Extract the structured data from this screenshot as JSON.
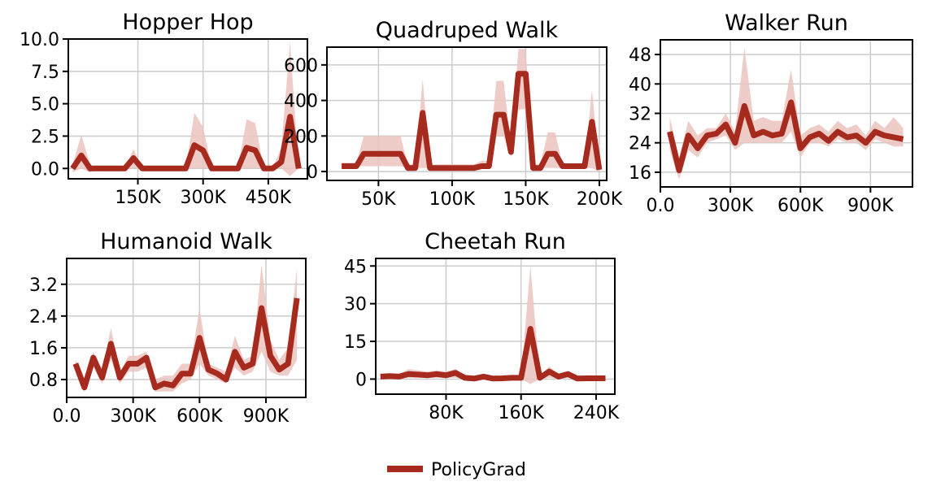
{
  "colors": {
    "line": "#a62a1e",
    "band": "#ebc4bf",
    "grid": "#cccccc",
    "axis": "#000000"
  },
  "legend": {
    "label": "PolicyGrad"
  },
  "chart_data": [
    {
      "type": "line",
      "title": "Hopper Hop",
      "xlim": [
        -10000,
        540000
      ],
      "ylim": [
        -0.8,
        10.0
      ],
      "xticks": [
        150000,
        300000,
        450000
      ],
      "xtick_labels": [
        "150K",
        "300K",
        "450K"
      ],
      "yticks": [
        0.0,
        2.5,
        5.0,
        7.5,
        10.0
      ],
      "ytick_labels": [
        "0.0",
        "2.5",
        "5.0",
        "7.5",
        "10.0"
      ],
      "series": [
        {
          "x": [
            0,
            20000,
            40000,
            60000,
            80000,
            100000,
            120000,
            140000,
            160000,
            180000,
            200000,
            220000,
            240000,
            260000,
            280000,
            300000,
            320000,
            340000,
            360000,
            380000,
            400000,
            420000,
            440000,
            460000,
            480000,
            500000,
            520000
          ],
          "y": [
            0,
            1.0,
            0,
            0,
            0,
            0,
            0,
            0.8,
            0,
            0,
            0,
            0,
            0,
            0,
            1.8,
            1.4,
            0,
            0,
            0,
            0,
            1.6,
            1.4,
            0,
            0,
            0.5,
            4.0,
            0
          ],
          "y_low": [
            -0.3,
            0,
            -0.3,
            0,
            0,
            0,
            0,
            0,
            0,
            0,
            0,
            0,
            0,
            0,
            0,
            0,
            0,
            0,
            0,
            0,
            0,
            0,
            0,
            0,
            0,
            -0.6,
            0
          ],
          "y_high": [
            0.3,
            2.6,
            0.3,
            0,
            0,
            0,
            0,
            1.5,
            0,
            0,
            0,
            0,
            0,
            0,
            4.3,
            3.2,
            0,
            0,
            0,
            0,
            3.8,
            3.5,
            0,
            0,
            1.6,
            9.8,
            0
          ]
        }
      ]
    },
    {
      "type": "line",
      "title": "Quadruped Walk",
      "xlim": [
        15000,
        205000
      ],
      "ylim": [
        -50,
        700
      ],
      "xticks": [
        50000,
        100000,
        150000,
        200000
      ],
      "xtick_labels": [
        "50K",
        "100K",
        "150K",
        "200K"
      ],
      "yticks": [
        0,
        200,
        400,
        600
      ],
      "ytick_labels": [
        "0",
        "200",
        "400",
        "600"
      ],
      "series": [
        {
          "x": [
            25000,
            30000,
            35000,
            40000,
            45000,
            50000,
            55000,
            60000,
            65000,
            70000,
            75000,
            80000,
            85000,
            90000,
            95000,
            100000,
            105000,
            110000,
            115000,
            120000,
            125000,
            130000,
            135000,
            140000,
            145000,
            150000,
            155000,
            160000,
            165000,
            170000,
            175000,
            180000,
            185000,
            190000,
            195000,
            200000
          ],
          "y": [
            30,
            30,
            30,
            100,
            100,
            100,
            100,
            100,
            100,
            20,
            20,
            330,
            20,
            20,
            20,
            20,
            20,
            20,
            20,
            30,
            30,
            320,
            320,
            110,
            550,
            550,
            20,
            20,
            100,
            100,
            30,
            30,
            30,
            30,
            280,
            10
          ],
          "y_low": [
            30,
            30,
            30,
            30,
            30,
            30,
            30,
            30,
            30,
            20,
            20,
            20,
            20,
            20,
            20,
            20,
            20,
            20,
            20,
            20,
            20,
            200,
            200,
            80,
            350,
            350,
            20,
            20,
            20,
            20,
            20,
            20,
            20,
            20,
            20,
            0
          ],
          "y_high": [
            50,
            50,
            50,
            200,
            200,
            200,
            200,
            200,
            200,
            40,
            40,
            520,
            40,
            40,
            40,
            40,
            40,
            40,
            40,
            60,
            60,
            510,
            510,
            150,
            690,
            690,
            40,
            40,
            220,
            220,
            40,
            40,
            40,
            40,
            460,
            20
          ]
        }
      ]
    },
    {
      "type": "line",
      "title": "Walker Run",
      "xlim": [
        0,
        1080000
      ],
      "ylim": [
        12,
        52
      ],
      "xticks": [
        0,
        300000,
        600000,
        900000
      ],
      "xtick_labels": [
        "0.0",
        "300K",
        "600K",
        "900K"
      ],
      "yticks": [
        16,
        24,
        32,
        40,
        48
      ],
      "ytick_labels": [
        "16",
        "24",
        "32",
        "40",
        "48"
      ],
      "series": [
        {
          "x": [
            40000,
            80000,
            120000,
            160000,
            200000,
            240000,
            280000,
            320000,
            360000,
            400000,
            440000,
            480000,
            520000,
            560000,
            600000,
            640000,
            680000,
            720000,
            760000,
            800000,
            840000,
            880000,
            920000,
            960000,
            1000000,
            1040000
          ],
          "y": [
            27,
            16.5,
            26,
            22.5,
            26,
            26.5,
            29,
            24,
            34,
            26,
            27,
            26,
            26.5,
            35,
            22.5,
            25.5,
            26.5,
            24.5,
            27,
            25.5,
            26,
            24,
            27,
            26,
            25.5,
            25
          ],
          "y_low": [
            22,
            14,
            22,
            20,
            24,
            25,
            26,
            22,
            24,
            24,
            24,
            24,
            24,
            27,
            20,
            24,
            24,
            23,
            25,
            24,
            24,
            22,
            25,
            24,
            23,
            23
          ],
          "y_high": [
            31,
            20,
            30,
            26,
            28,
            28,
            32,
            27,
            50,
            30,
            31,
            30,
            30,
            44,
            26,
            28,
            29,
            27,
            30,
            28,
            29,
            26,
            30,
            28,
            31,
            28
          ]
        }
      ]
    },
    {
      "type": "line",
      "title": "Humanoid Walk",
      "xlim": [
        0,
        1080000
      ],
      "ylim": [
        0.35,
        3.85
      ],
      "xticks": [
        0,
        300000,
        600000,
        900000
      ],
      "xtick_labels": [
        "0.0",
        "300K",
        "600K",
        "900K"
      ],
      "yticks": [
        0.8,
        1.6,
        2.4,
        3.2
      ],
      "ytick_labels": [
        "0.8",
        "1.6",
        "2.4",
        "3.2"
      ],
      "series": [
        {
          "x": [
            40000,
            80000,
            120000,
            160000,
            200000,
            240000,
            280000,
            320000,
            360000,
            400000,
            440000,
            480000,
            520000,
            560000,
            600000,
            640000,
            680000,
            720000,
            760000,
            800000,
            840000,
            880000,
            920000,
            960000,
            1000000,
            1040000
          ],
          "y": [
            1.2,
            0.6,
            1.35,
            0.85,
            1.7,
            0.85,
            1.2,
            1.2,
            1.35,
            0.6,
            0.7,
            0.65,
            0.95,
            0.95,
            1.85,
            1.05,
            0.95,
            0.8,
            1.5,
            1.1,
            1.2,
            2.6,
            1.4,
            1.05,
            1.2,
            2.85
          ],
          "y_low": [
            1.0,
            0.5,
            1.1,
            0.7,
            1.3,
            0.7,
            1.0,
            1.0,
            1.1,
            0.5,
            0.5,
            0.5,
            0.7,
            0.8,
            1.2,
            0.9,
            0.8,
            0.7,
            1.1,
            0.9,
            1.0,
            1.5,
            1.0,
            0.9,
            0.9,
            1.3
          ],
          "y_low_note": "",
          "y_high": [
            1.3,
            0.8,
            1.5,
            1.0,
            2.1,
            1.0,
            1.4,
            1.4,
            1.5,
            0.8,
            0.9,
            0.9,
            1.2,
            1.2,
            2.6,
            1.2,
            1.1,
            1.0,
            1.9,
            1.3,
            1.4,
            3.7,
            1.8,
            1.3,
            1.6,
            3.6
          ]
        }
      ]
    },
    {
      "type": "line",
      "title": "Cheetah Run",
      "xlim": [
        5000,
        260000
      ],
      "ylim": [
        -6,
        48
      ],
      "xticks": [
        80000,
        160000,
        240000
      ],
      "xtick_labels": [
        "80K",
        "160K",
        "240K"
      ],
      "yticks": [
        0,
        15,
        30,
        45
      ],
      "ytick_labels": [
        "0",
        "15",
        "30",
        "45"
      ],
      "series": [
        {
          "x": [
            10000,
            20000,
            30000,
            40000,
            50000,
            60000,
            70000,
            80000,
            90000,
            100000,
            110000,
            120000,
            130000,
            140000,
            150000,
            160000,
            170000,
            180000,
            190000,
            200000,
            210000,
            220000,
            230000,
            240000,
            250000
          ],
          "y": [
            1,
            1.2,
            1,
            2,
            1.8,
            1.5,
            2,
            1.5,
            2.5,
            0.5,
            0.2,
            1,
            0.2,
            0.3,
            0.5,
            0.5,
            20,
            0.5,
            3,
            1,
            2,
            0.2,
            0.3,
            0.3,
            0.3
          ],
          "y_low": [
            0.5,
            0.5,
            0.5,
            0.5,
            0.5,
            0.5,
            0.5,
            0.5,
            0.5,
            0,
            0,
            0,
            0,
            0,
            0,
            0,
            -2,
            0,
            0.5,
            0,
            0.5,
            0,
            0,
            0,
            0
          ],
          "y_high": [
            2,
            2,
            2,
            4,
            3.5,
            3,
            3.5,
            3,
            4,
            1.5,
            1,
            2,
            1,
            1,
            1,
            1,
            45,
            1,
            5,
            2,
            3,
            1,
            1,
            1,
            1
          ]
        }
      ]
    }
  ]
}
